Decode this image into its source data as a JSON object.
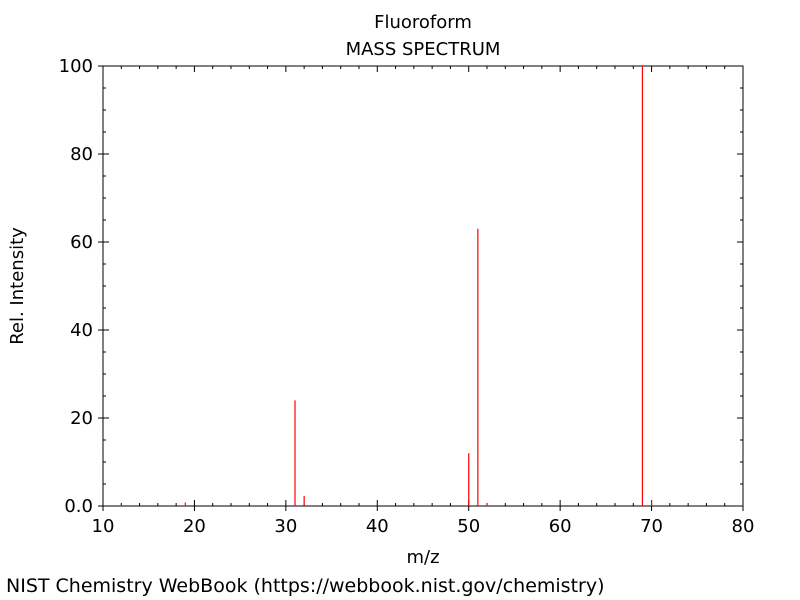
{
  "chart_data": {
    "type": "bar",
    "title": "Fluoroform",
    "subtitle": "MASS SPECTRUM",
    "xlabel": "m/z",
    "ylabel": "Rel. Intensity",
    "xlim": [
      10,
      80
    ],
    "ylim": [
      0,
      100
    ],
    "x_ticks": [
      "10",
      "20",
      "30",
      "40",
      "50",
      "60",
      "70",
      "80"
    ],
    "y_ticks": [
      "0.0",
      "20",
      "40",
      "60",
      "80",
      "100"
    ],
    "grid": false,
    "series": [
      {
        "points": [
          {
            "x": 12,
            "y": 0.3
          },
          {
            "x": 19,
            "y": 0.8
          },
          {
            "x": 31,
            "y": 24
          },
          {
            "x": 32,
            "y": 2.3
          },
          {
            "x": 50,
            "y": 12
          },
          {
            "x": 51,
            "y": 63
          },
          {
            "x": 52,
            "y": 0.6
          },
          {
            "x": 69,
            "y": 100
          },
          {
            "x": 70,
            "y": 1.2
          }
        ]
      }
    ],
    "colors": {
      "peak": "#ff0000",
      "axis": "#000000"
    }
  },
  "footer": {
    "credit": "NIST Chemistry WebBook (https://webbook.nist.gov/chemistry)"
  }
}
